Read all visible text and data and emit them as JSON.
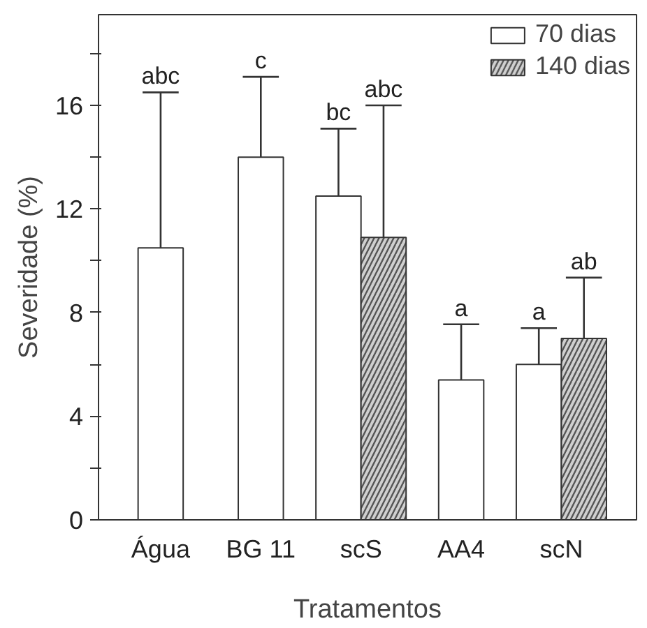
{
  "chart_data": {
    "type": "bar",
    "xlabel": "Tratamentos",
    "ylabel": "Severidade (%)",
    "categories": [
      "Água",
      "BG 11",
      "scS",
      "AA4",
      "scN"
    ],
    "series": [
      {
        "name": "70 dias",
        "color": "#ffffff",
        "values": [
          10.5,
          14.0,
          12.5,
          5.4,
          6.0
        ],
        "errors": [
          [
            10.5,
            16.5
          ],
          [
            14.0,
            17.1
          ],
          [
            12.5,
            15.1
          ],
          [
            5.4,
            7.55
          ],
          [
            6.0,
            7.4
          ]
        ]
      },
      {
        "name": "140 dias",
        "color": "#d0d0d0",
        "values": [
          null,
          null,
          10.9,
          null,
          7.0
        ],
        "errors": [
          null,
          null,
          [
            10.9,
            16.0
          ],
          null,
          [
            7.0,
            9.35
          ]
        ]
      }
    ],
    "ylim": [
      0,
      19.5
    ],
    "yticks": [
      0,
      {
        "value": 2,
        "label": null
      },
      4,
      {
        "value": 6,
        "label": null
      },
      8,
      {
        "value": 10,
        "label": null
      },
      12,
      {
        "value": 14,
        "label": null
      },
      16,
      {
        "value": 18,
        "label": null
      }
    ],
    "annotations": [
      {
        "text": "abc",
        "x": "Água",
        "y": 16.5
      },
      {
        "text": "c",
        "x": "BG 11",
        "y": 17.1
      },
      {
        "text": "bc",
        "x": "scS",
        "y": 15.1
      },
      {
        "text": "abc",
        "x": "scS",
        "y": 16.0
      },
      {
        "text": "a",
        "x": "AA4",
        "y": 7.55
      },
      {
        "text": "a",
        "x": "scN",
        "y": 7.4
      },
      {
        "text": "ab",
        "x": "scN",
        "y": 9.35
      }
    ],
    "legend": "top right",
    "grid": false
  }
}
